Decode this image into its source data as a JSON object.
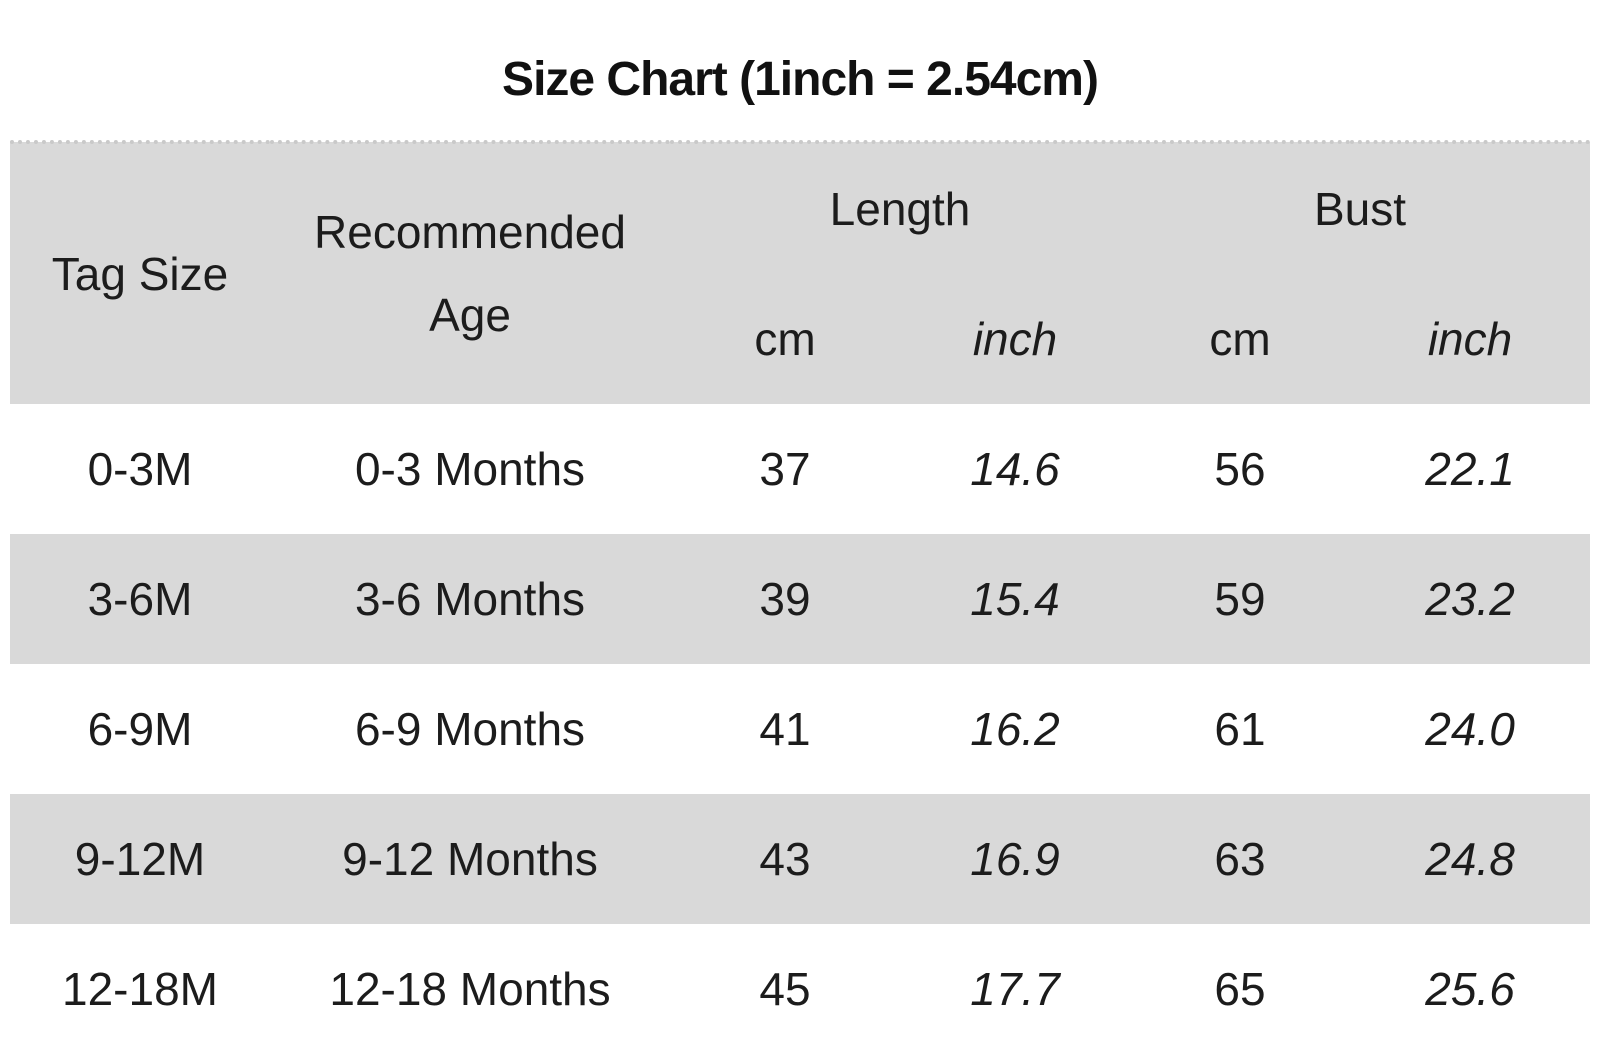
{
  "title": "Size Chart (1inch = 2.54cm)",
  "colors": {
    "band": "#d9d9d9",
    "text": "#1c1c1c",
    "background": "#ffffff"
  },
  "table": {
    "headers": {
      "tag_size": "Tag Size",
      "recommended_age": "Recommended Age",
      "length": "Length",
      "bust": "Bust",
      "length_cm": "cm",
      "length_inch": "inch",
      "bust_cm": "cm",
      "bust_inch": "inch"
    },
    "rows": [
      {
        "tag": "0-3M",
        "age": "0-3 Months",
        "length_cm": "37",
        "length_inch": "14.6",
        "bust_cm": "56",
        "bust_inch": "22.1"
      },
      {
        "tag": "3-6M",
        "age": "3-6 Months",
        "length_cm": "39",
        "length_inch": "15.4",
        "bust_cm": "59",
        "bust_inch": "23.2"
      },
      {
        "tag": "6-9M",
        "age": "6-9 Months",
        "length_cm": "41",
        "length_inch": "16.2",
        "bust_cm": "61",
        "bust_inch": "24.0"
      },
      {
        "tag": "9-12M",
        "age": "9-12 Months",
        "length_cm": "43",
        "length_inch": "16.9",
        "bust_cm": "63",
        "bust_inch": "24.8"
      },
      {
        "tag": "12-18M",
        "age": "12-18 Months",
        "length_cm": "45",
        "length_inch": "17.7",
        "bust_cm": "65",
        "bust_inch": "25.6"
      }
    ]
  },
  "chart_data": {
    "type": "table",
    "title": "Size Chart (1inch = 2.54cm)",
    "columns": [
      "Tag Size",
      "Recommended Age",
      "Length cm",
      "Length inch",
      "Bust cm",
      "Bust inch"
    ],
    "rows": [
      [
        "0-3M",
        "0-3 Months",
        37,
        14.6,
        56,
        22.1
      ],
      [
        "3-6M",
        "3-6 Months",
        39,
        15.4,
        59,
        23.2
      ],
      [
        "6-9M",
        "6-9 Months",
        41,
        16.2,
        61,
        24.0
      ],
      [
        "9-12M",
        "9-12 Months",
        43,
        16.9,
        63,
        24.8
      ],
      [
        "12-18M",
        "12-18 Months",
        45,
        17.7,
        65,
        25.6
      ]
    ],
    "layout": {
      "header_band_color": "#d9d9d9",
      "alternating_row_band_color": "#d9d9d9",
      "banded_rows": [
        1,
        3
      ],
      "grid": false
    }
  }
}
